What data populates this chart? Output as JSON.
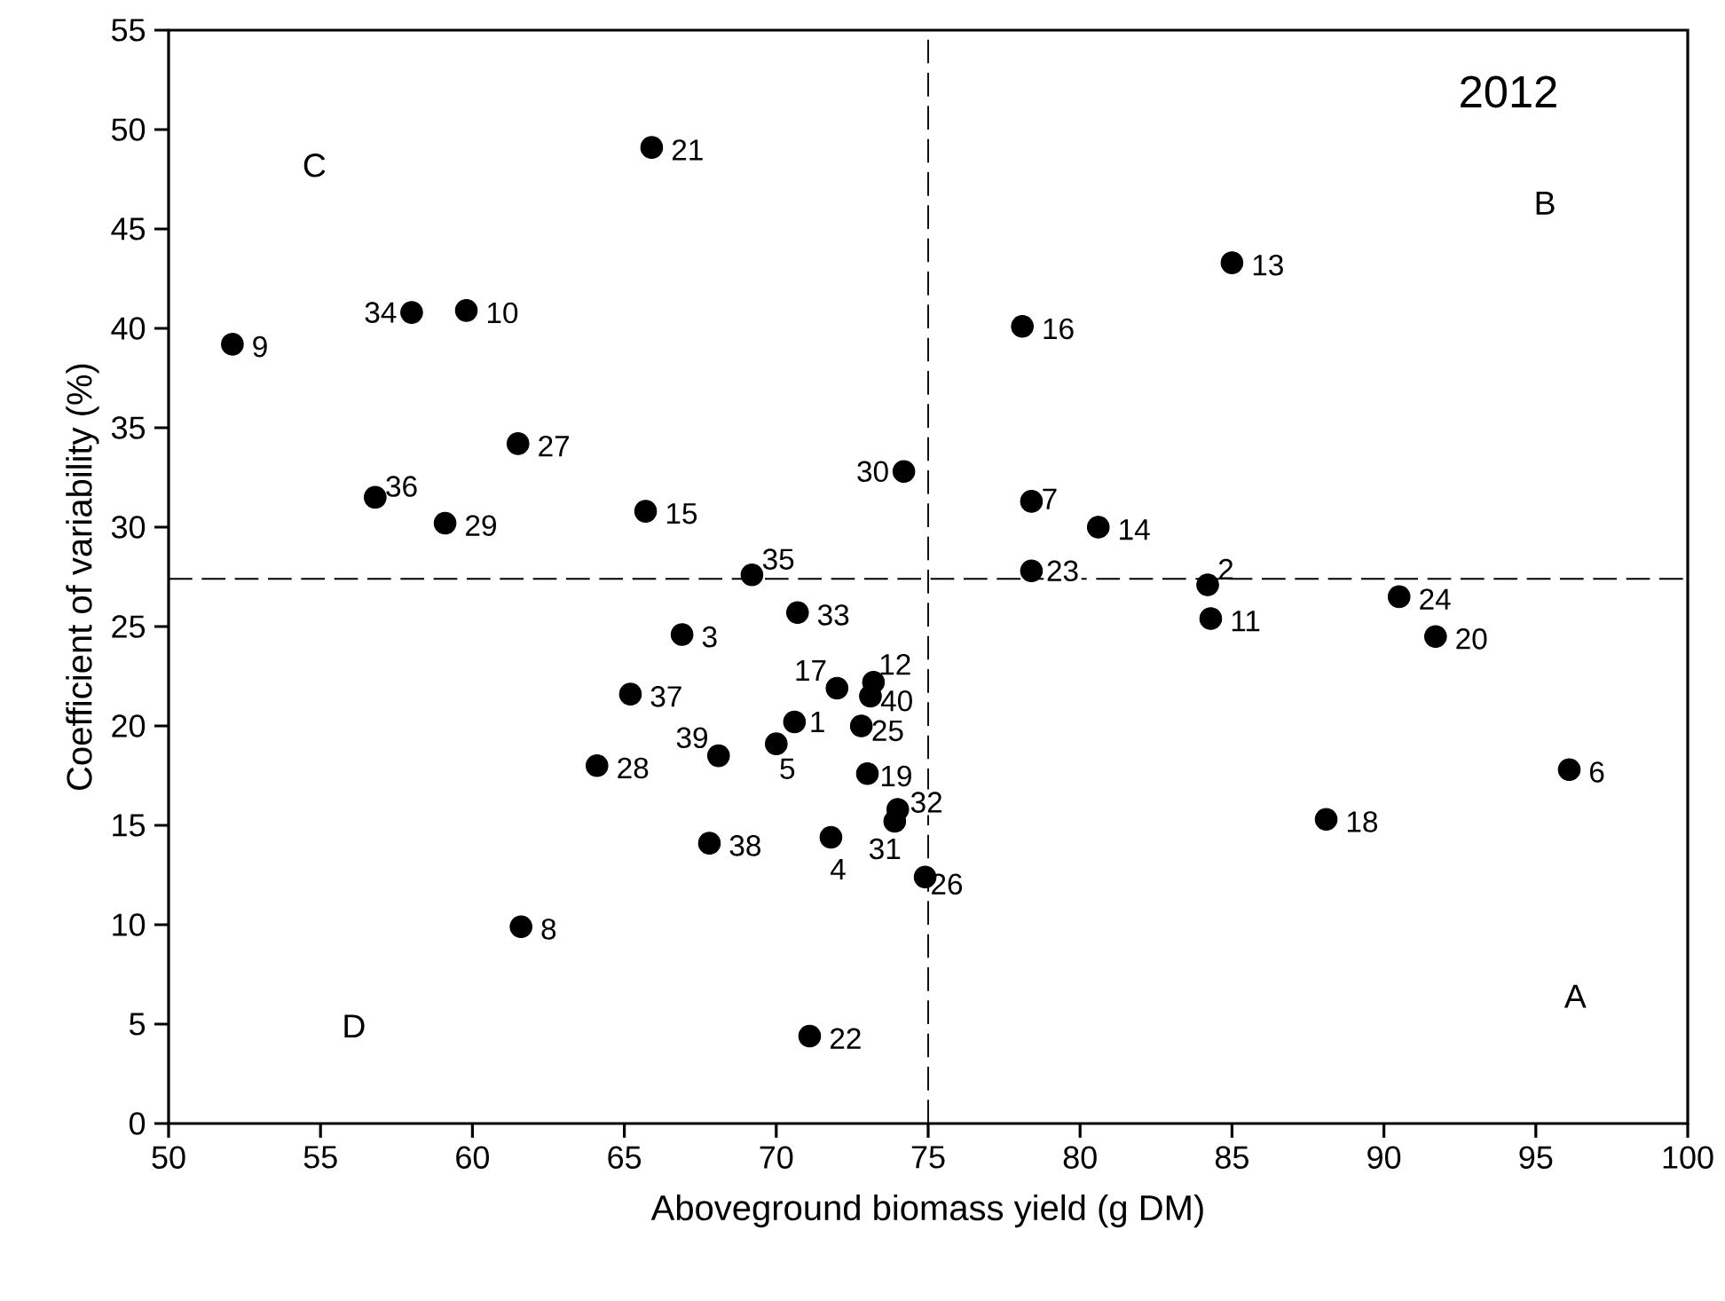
{
  "chart_data": {
    "type": "scatter",
    "xlabel": "Aboveground biomass yield (g DM)",
    "ylabel": "Coefficient of variability (%)",
    "annotations": [
      "2012",
      "A",
      "B",
      "C",
      "D",
      {
        "text": "1",
        "x": 70.6,
        "y": 20.2
      },
      {
        "text": "2",
        "x": 84.2,
        "y": 27.1
      },
      {
        "text": "3",
        "x": 66.9,
        "y": 24.6
      },
      {
        "text": "4",
        "x": 71.8,
        "y": 14.4
      },
      {
        "text": "5",
        "x": 70.0,
        "y": 19.1
      },
      {
        "text": "6",
        "x": 96.1,
        "y": 17.8
      },
      {
        "text": "7",
        "x": 78.4,
        "y": 31.3
      },
      {
        "text": "8",
        "x": 61.6,
        "y": 9.9
      },
      {
        "text": "9",
        "x": 52.1,
        "y": 39.2
      },
      {
        "text": "10",
        "x": 59.8,
        "y": 40.9
      },
      {
        "text": "11",
        "x": 84.3,
        "y": 25.4
      },
      {
        "text": "12",
        "x": 73.2,
        "y": 22.2
      },
      {
        "text": "13",
        "x": 85.0,
        "y": 43.3
      },
      {
        "text": "14",
        "x": 80.6,
        "y": 30.0
      },
      {
        "text": "15",
        "x": 65.7,
        "y": 30.8
      },
      {
        "text": "16",
        "x": 78.1,
        "y": 40.1
      },
      {
        "text": "17",
        "x": 72.0,
        "y": 21.9
      },
      {
        "text": "18",
        "x": 88.1,
        "y": 15.3
      },
      {
        "text": "19",
        "x": 73.0,
        "y": 17.6
      },
      {
        "text": "20",
        "x": 91.7,
        "y": 24.5
      },
      {
        "text": "21",
        "x": 65.9,
        "y": 49.1
      },
      {
        "text": "22",
        "x": 71.1,
        "y": 4.4
      },
      {
        "text": "23",
        "x": 78.4,
        "y": 27.8
      },
      {
        "text": "24",
        "x": 90.5,
        "y": 26.5
      },
      {
        "text": "25",
        "x": 72.8,
        "y": 20.0
      },
      {
        "text": "26",
        "x": 74.9,
        "y": 12.4
      },
      {
        "text": "27",
        "x": 61.5,
        "y": 34.2
      },
      {
        "text": "28",
        "x": 64.1,
        "y": 18.0
      },
      {
        "text": "29",
        "x": 59.1,
        "y": 30.2
      },
      {
        "text": "30",
        "x": 74.2,
        "y": 32.8
      },
      {
        "text": "31",
        "x": 73.9,
        "y": 15.2
      },
      {
        "text": "32",
        "x": 74.0,
        "y": 15.8
      },
      {
        "text": "33",
        "x": 70.7,
        "y": 25.7
      },
      {
        "text": "34",
        "x": 58.0,
        "y": 40.8
      },
      {
        "text": "35",
        "x": 69.2,
        "y": 27.6
      },
      {
        "text": "36",
        "x": 56.8,
        "y": 31.5
      },
      {
        "text": "37",
        "x": 65.2,
        "y": 21.6
      },
      {
        "text": "38",
        "x": 67.8,
        "y": 14.1
      },
      {
        "text": "39",
        "x": 68.1,
        "y": 18.5
      },
      {
        "text": "40",
        "x": 73.1,
        "y": 21.5
      }
    ],
    "x": [
      70.6,
      84.2,
      66.9,
      71.8,
      70.0,
      96.1,
      78.4,
      61.6,
      52.1,
      59.8,
      84.3,
      73.2,
      85.0,
      80.6,
      65.7,
      78.1,
      72.0,
      88.1,
      73.0,
      91.7,
      65.9,
      71.1,
      78.4,
      90.5,
      72.8,
      74.9,
      61.5,
      64.1,
      59.1,
      74.2,
      73.9,
      74.0,
      70.7,
      58.0,
      69.2,
      56.8,
      65.2,
      67.8,
      68.1,
      73.1
    ],
    "values": [
      20.2,
      27.1,
      24.6,
      14.4,
      19.1,
      17.8,
      31.3,
      9.9,
      39.2,
      40.9,
      25.4,
      22.2,
      43.3,
      30.0,
      30.8,
      40.1,
      21.9,
      15.3,
      17.6,
      24.5,
      49.1,
      4.4,
      27.8,
      26.5,
      20.0,
      12.4,
      34.2,
      18.0,
      30.2,
      32.8,
      15.2,
      15.8,
      25.7,
      40.8,
      27.6,
      31.5,
      21.6,
      14.1,
      18.5,
      21.5
    ],
    "color": "#000000",
    "marker": "circle",
    "xlim": [
      50,
      100
    ],
    "xticks": [
      50,
      55,
      60,
      65,
      70,
      75,
      80,
      85,
      90,
      95,
      100
    ],
    "ylim": [
      0,
      55
    ],
    "yticks": [
      0,
      5,
      10,
      15,
      20,
      25,
      30,
      35,
      40,
      45,
      50,
      55
    ],
    "ref_lines": [
      {
        "axis": "x",
        "value": 75,
        "line_style": "dashed"
      },
      {
        "axis": "y",
        "value": 27.4,
        "line_style": "dashed"
      }
    ],
    "grid": false
  }
}
